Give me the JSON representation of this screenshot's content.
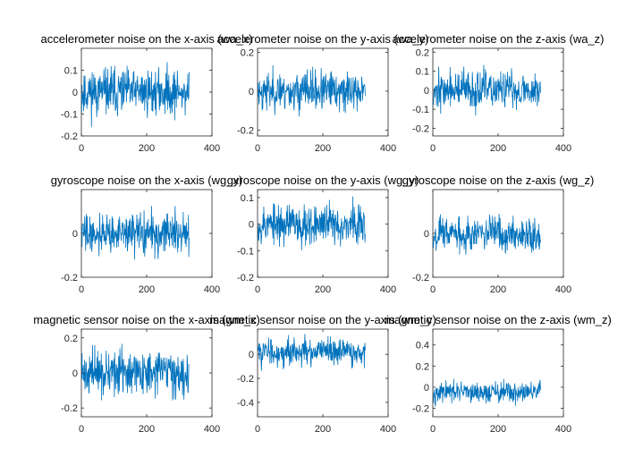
{
  "figure": {
    "background": "#ffffff"
  },
  "series_color": "#0072BD",
  "chart_data": [
    {
      "type": "line",
      "title": "accelerometer noise on the x-axis (wa_x)",
      "xlim": [
        0,
        400
      ],
      "ylim": [
        -0.2,
        0.2
      ],
      "xticks": [
        "0",
        "200",
        "400"
      ],
      "yticks": [
        "0.1",
        "0",
        "-0.1",
        "-0.2"
      ],
      "n_points": 330,
      "amplitude": 0.075,
      "mean": 0,
      "y_range_observed": [
        -0.2,
        0.19
      ],
      "seed": 11
    },
    {
      "type": "line",
      "title": "accelerometer noise on the y-axis (wa_y)",
      "xlim": [
        0,
        400
      ],
      "ylim": [
        -0.23,
        0.22
      ],
      "xticks": [
        "0",
        "200",
        "400"
      ],
      "yticks": [
        "0.2",
        "0",
        "-0.2"
      ],
      "n_points": 330,
      "amplitude": 0.07,
      "mean": 0,
      "y_range_observed": [
        -0.22,
        0.21
      ],
      "seed": 23
    },
    {
      "type": "line",
      "title": "accelerometer noise on the z-axis (wa_z)",
      "xlim": [
        0,
        400
      ],
      "ylim": [
        -0.24,
        0.22
      ],
      "xticks": [
        "0",
        "200",
        "400"
      ],
      "yticks": [
        "0.2",
        "0.1",
        "0",
        "-0.1",
        "-0.2"
      ],
      "n_points": 330,
      "amplitude": 0.07,
      "mean": 0,
      "y_range_observed": [
        -0.23,
        0.21
      ],
      "seed": 37
    },
    {
      "type": "line",
      "title": "gyroscope noise on the x-axis (wg_x)",
      "xlim": [
        0,
        400
      ],
      "ylim": [
        -0.2,
        0.2
      ],
      "xticks": [
        "0",
        "200",
        "400"
      ],
      "yticks": [
        "0",
        "-0.2"
      ],
      "n_points": 330,
      "amplitude": 0.065,
      "mean": 0,
      "y_range_observed": [
        -0.15,
        0.17
      ],
      "seed": 41
    },
    {
      "type": "line",
      "title": "gyroscope noise on the y-axis (wg_y)",
      "xlim": [
        0,
        400
      ],
      "ylim": [
        -0.2,
        0.13
      ],
      "xticks": [
        "0",
        "200",
        "400"
      ],
      "yticks": [
        "0.1",
        "0",
        "-0.1",
        "-0.2"
      ],
      "n_points": 330,
      "amplitude": 0.055,
      "mean": 0,
      "y_range_observed": [
        -0.17,
        0.13
      ],
      "seed": 53
    },
    {
      "type": "line",
      "title": "gyroscope noise on the z-axis (wg_z)",
      "xlim": [
        0,
        400
      ],
      "ylim": [
        -0.2,
        0.2
      ],
      "xticks": [
        "0",
        "200",
        "400"
      ],
      "yticks": [
        "0",
        "-0.2"
      ],
      "n_points": 330,
      "amplitude": 0.055,
      "mean": 0,
      "y_range_observed": [
        -0.13,
        0.12
      ],
      "seed": 67
    },
    {
      "type": "line",
      "title": "magnetic sensor noise on the x-axis (wm_x)",
      "xlim": [
        0,
        400
      ],
      "ylim": [
        -0.25,
        0.25
      ],
      "xticks": [
        "0",
        "200",
        "400"
      ],
      "yticks": [
        "0.2",
        "0",
        "-0.2"
      ],
      "n_points": 330,
      "amplitude": 0.09,
      "mean": 0,
      "y_range_observed": [
        -0.23,
        0.24
      ],
      "seed": 71
    },
    {
      "type": "line",
      "title": "magnetic sensor noise on the y-axis (wm_y)",
      "xlim": [
        0,
        400
      ],
      "ylim": [
        -0.52,
        0.21
      ],
      "xticks": [
        "0",
        "200",
        "400"
      ],
      "yticks": [
        "0",
        "-0.2",
        "-0.4"
      ],
      "n_points": 330,
      "amplitude": 0.08,
      "mean": 0.02,
      "y_range_observed": [
        -0.2,
        0.17
      ],
      "seed": 83
    },
    {
      "type": "line",
      "title": "magnetic sensor noise on the z-axis (wm_z)",
      "xlim": [
        0,
        400
      ],
      "ylim": [
        -0.28,
        0.55
      ],
      "xticks": [
        "0",
        "200",
        "400"
      ],
      "yticks": [
        "0.4",
        "0.2",
        "0",
        "-0.2"
      ],
      "n_points": 330,
      "amplitude": 0.07,
      "mean": -0.05,
      "y_range_observed": [
        -0.27,
        0.2
      ],
      "seed": 97
    }
  ]
}
